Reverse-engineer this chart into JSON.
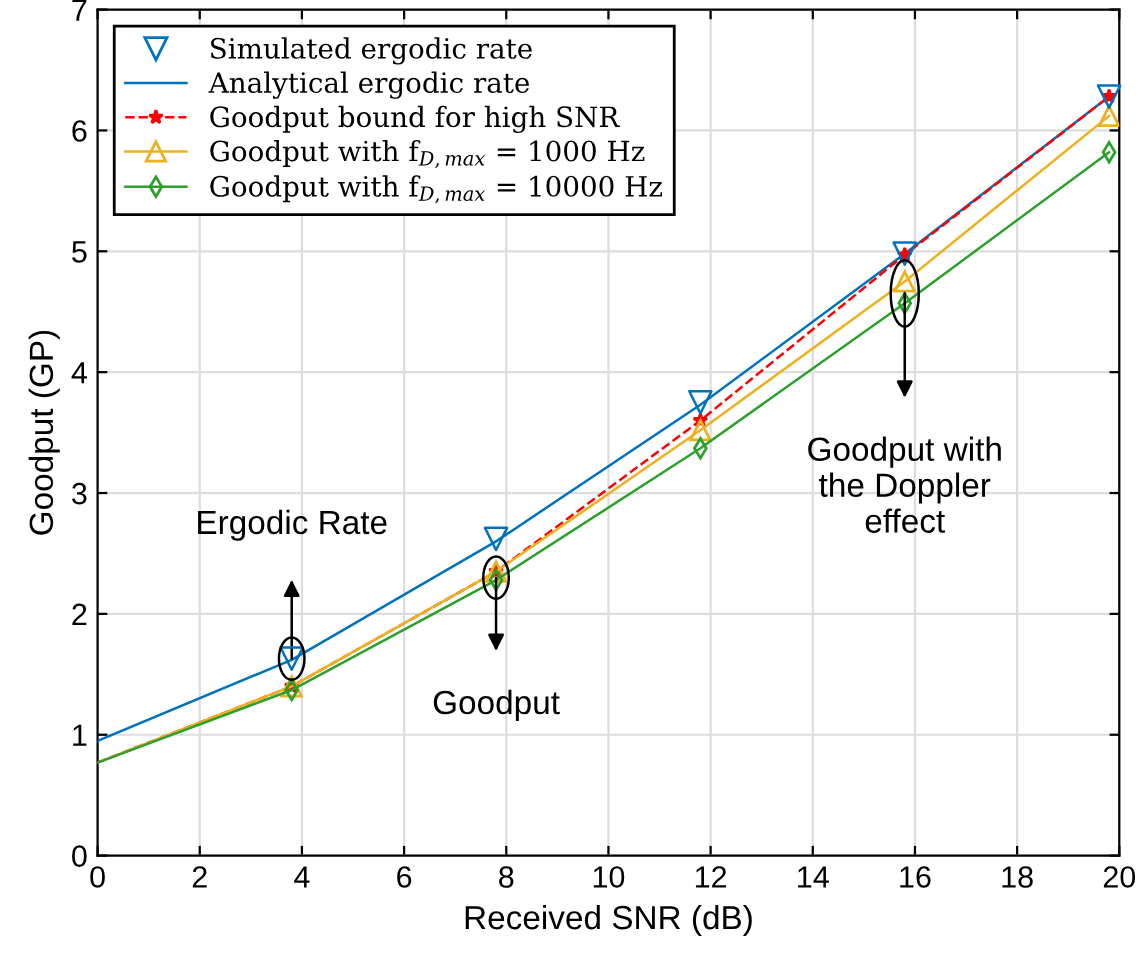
{
  "chart_data": {
    "type": "line",
    "xlabel": "Received SNR (dB)",
    "ylabel": "Goodput (GP)",
    "xlim": [
      0,
      20
    ],
    "ylim": [
      0,
      7
    ],
    "xticks": [
      0,
      2,
      4,
      6,
      8,
      10,
      12,
      14,
      16,
      18,
      20
    ],
    "yticks": [
      0,
      1,
      2,
      3,
      4,
      5,
      6,
      7
    ],
    "grid": true,
    "legend": "top left",
    "series": [
      {
        "name": "Simulated ergodic rate",
        "type": "scatter",
        "color": "#0072bd",
        "marker": "triangle_down",
        "x": [
          3.8,
          7.8,
          11.8,
          15.8,
          19.8
        ],
        "values": [
          1.63,
          2.62,
          3.75,
          4.98,
          6.28
        ]
      },
      {
        "name": "Analytical ergodic rate",
        "color": "#0072bd",
        "marker": "none",
        "line_style": "solid",
        "x": [
          0,
          3.8,
          7.8,
          11.8,
          15.8,
          19.8
        ],
        "values": [
          0.95,
          1.62,
          2.6,
          3.73,
          4.98,
          6.28
        ]
      },
      {
        "name": "Goodput bound for high SNR",
        "color": "#ff0000",
        "marker": "star",
        "line_style": "dashed",
        "x": [
          0,
          3.8,
          7.8,
          11.8,
          15.8,
          19.8
        ],
        "values": [
          0.77,
          1.4,
          2.35,
          3.6,
          4.97,
          6.28
        ]
      },
      {
        "name": "Goodput with f$_{D,max}$ = 1000 Hz",
        "color": "#edb120",
        "marker": "triangle",
        "line_style": "solid",
        "x": [
          0,
          3.8,
          7.8,
          11.8,
          15.8,
          19.8
        ],
        "values": [
          0.77,
          1.4,
          2.35,
          3.52,
          4.75,
          6.12
        ]
      },
      {
        "name": "Goodput with f$_{D,max}$ = 10000 Hz",
        "color": "#2ca02c",
        "marker": "diamond",
        "line_style": "solid",
        "x": [
          0,
          3.8,
          7.8,
          11.8,
          15.8,
          19.8
        ],
        "values": [
          0.77,
          1.37,
          2.28,
          3.37,
          4.57,
          5.82
        ]
      }
    ],
    "annotations": [
      {
        "text": "Ergodic Rate",
        "x": 3.8,
        "y": 1.63
      },
      {
        "text": "Goodput",
        "x": 7.8,
        "y": 2.3
      },
      {
        "text": "Goodput with\nthe Doppler\neffect",
        "x": 15.8,
        "y": 4.65
      }
    ]
  }
}
